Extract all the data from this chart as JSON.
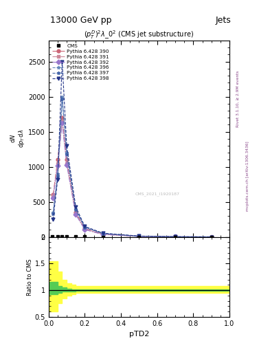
{
  "title_top": "13000 GeV pp",
  "title_right": "Jets",
  "plot_title": "$(p_T^D)^2\\lambda\\_0^2$ (CMS jet substructure)",
  "xlabel": "pTD2",
  "ylabel_main": "mathrm dN / mathrm d p_T mathrm d lambda",
  "ylabel_ratio": "Ratio to CMS",
  "rivet_label": "Rivet 3.1.10, ≥ 2.9M events",
  "mcplots_label": "mcplots.cern.ch [arXiv:1306.3436]",
  "watermark": "CMS_2021_I1920187",
  "xlim": [
    0.0,
    1.0
  ],
  "ylim_main": [
    0,
    2800
  ],
  "ylim_ratio": [
    0.5,
    2.0
  ],
  "yticks_main": [
    0,
    500,
    1000,
    1500,
    2000,
    2500
  ],
  "yticks_ratio": [
    0.5,
    1.0,
    1.5,
    2.0
  ],
  "cms_x": [
    0.02,
    0.05,
    0.075,
    0.1,
    0.15,
    0.2,
    0.3,
    0.5,
    0.7,
    0.9
  ],
  "cms_y": [
    10,
    10,
    10,
    10,
    5,
    3,
    1,
    0.5,
    0.2,
    0.1
  ],
  "series": [
    {
      "label": "Pythia 6.428 390",
      "color": "#cc6677",
      "marker": "o",
      "linestyle": "-.",
      "x": [
        0.025,
        0.05,
        0.075,
        0.1,
        0.15,
        0.2,
        0.3,
        0.5,
        0.7,
        0.9
      ],
      "y": [
        600,
        1100,
        1700,
        1100,
        350,
        120,
        40,
        10,
        3,
        1
      ]
    },
    {
      "label": "Pythia 6.428 391",
      "color": "#cc8899",
      "marker": "s",
      "linestyle": "-.",
      "x": [
        0.025,
        0.05,
        0.075,
        0.1,
        0.15,
        0.2,
        0.3,
        0.5,
        0.7,
        0.9
      ],
      "y": [
        580,
        1050,
        1650,
        1050,
        330,
        110,
        37,
        9,
        2.5,
        0.8
      ]
    },
    {
      "label": "Pythia 6.428 392",
      "color": "#9977cc",
      "marker": "D",
      "linestyle": "-.",
      "x": [
        0.025,
        0.05,
        0.075,
        0.1,
        0.15,
        0.2,
        0.3,
        0.5,
        0.7,
        0.9
      ],
      "y": [
        560,
        1020,
        1620,
        1030,
        320,
        105,
        35,
        8,
        2,
        0.7
      ]
    },
    {
      "label": "Pythia 6.428 396",
      "color": "#6688bb",
      "marker": "*",
      "linestyle": "--",
      "x": [
        0.025,
        0.05,
        0.075,
        0.1,
        0.15,
        0.2,
        0.3,
        0.5,
        0.7,
        0.9
      ],
      "y": [
        350,
        900,
        2000,
        1200,
        400,
        140,
        50,
        12,
        4,
        1.5
      ]
    },
    {
      "label": "Pythia 6.428 397",
      "color": "#4466aa",
      "marker": "*",
      "linestyle": "--",
      "x": [
        0.025,
        0.05,
        0.075,
        0.1,
        0.15,
        0.2,
        0.3,
        0.5,
        0.7,
        0.9
      ],
      "y": [
        330,
        870,
        1970,
        1180,
        385,
        135,
        48,
        11,
        3.5,
        1.2
      ]
    },
    {
      "label": "Pythia 6.428 398",
      "color": "#223388",
      "marker": "v",
      "linestyle": "--",
      "x": [
        0.025,
        0.05,
        0.075,
        0.1,
        0.15,
        0.2,
        0.3,
        0.5,
        0.7,
        0.9
      ],
      "y": [
        250,
        820,
        2500,
        1300,
        430,
        150,
        55,
        13,
        4,
        1.5
      ]
    }
  ],
  "ratio_green_x": [
    0.0,
    0.025,
    0.05,
    0.075,
    0.1,
    0.125,
    0.15,
    1.0
  ],
  "ratio_green_y_lo": [
    0.92,
    0.92,
    0.95,
    0.97,
    0.98,
    0.98,
    0.99,
    0.99
  ],
  "ratio_green_y_hi": [
    1.15,
    1.15,
    1.08,
    1.05,
    1.03,
    1.02,
    1.02,
    1.02
  ],
  "ratio_yellow_x": [
    0.0,
    0.025,
    0.05,
    0.075,
    0.1,
    0.125,
    0.15,
    1.0
  ],
  "ratio_yellow_y_lo": [
    0.6,
    0.6,
    0.75,
    0.85,
    0.9,
    0.93,
    0.95,
    0.95
  ],
  "ratio_yellow_y_hi": [
    1.55,
    1.55,
    1.35,
    1.2,
    1.13,
    1.1,
    1.08,
    1.08
  ]
}
